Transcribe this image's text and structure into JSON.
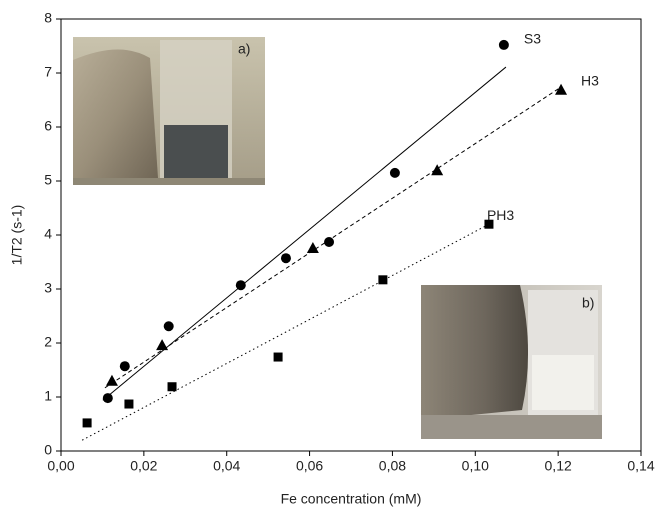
{
  "chart_data": {
    "type": "scatter",
    "xlabel": "Fe concentration (mM)",
    "ylabel": "1/T2 (s-1)",
    "xlim": [
      0,
      0.14
    ],
    "xticks": [
      {
        "value": 0,
        "label": "0,00"
      },
      {
        "value": 0.02,
        "label": "0,02"
      },
      {
        "value": 0.04,
        "label": "0,04"
      },
      {
        "value": 0.06,
        "label": "0,06"
      },
      {
        "value": 0.08,
        "label": "0,08"
      },
      {
        "value": 0.1,
        "label": "0,10"
      },
      {
        "value": 0.12,
        "label": "0,12"
      },
      {
        "value": 0.14,
        "label": "0,14"
      }
    ],
    "ylim": [
      0,
      8
    ],
    "yticks": [
      0,
      1,
      2,
      3,
      4,
      5,
      6,
      7,
      8
    ],
    "grid": false,
    "insets": [
      "a)",
      "b)"
    ],
    "series": [
      {
        "name": "S3",
        "color": "#000000",
        "marker": "circle",
        "line": "solid",
        "x": [
          0.0113,
          0.0154,
          0.026,
          0.0434,
          0.0543,
          0.0647,
          0.0806,
          0.1069
        ],
        "values": [
          0.98,
          1.57,
          2.31,
          3.07,
          3.57,
          3.87,
          5.15,
          7.52
        ],
        "fit": {
          "x": [
            0.0101,
            0.1074
          ],
          "y": [
            0.94,
            7.11
          ]
        }
      },
      {
        "name": "H3",
        "color": "#000000",
        "marker": "triangle",
        "line": "dashed",
        "x": [
          0.0123,
          0.0244,
          0.0608,
          0.0908,
          0.1207
        ],
        "values": [
          1.3,
          1.96,
          3.76,
          5.2,
          6.69
        ],
        "fit": {
          "x": [
            0.0106,
            0.1207
          ],
          "y": [
            1.17,
            6.74
          ]
        }
      },
      {
        "name": "PH3",
        "color": "#000000",
        "marker": "square",
        "line": "dotted",
        "x": [
          0.0063,
          0.0164,
          0.0268,
          0.0524,
          0.0777,
          0.1033
        ],
        "values": [
          0.52,
          0.87,
          1.19,
          1.74,
          3.17,
          4.2
        ],
        "fit": {
          "x": [
            0.0051,
            0.1033
          ],
          "y": [
            0.2,
            4.2
          ]
        }
      }
    ]
  }
}
